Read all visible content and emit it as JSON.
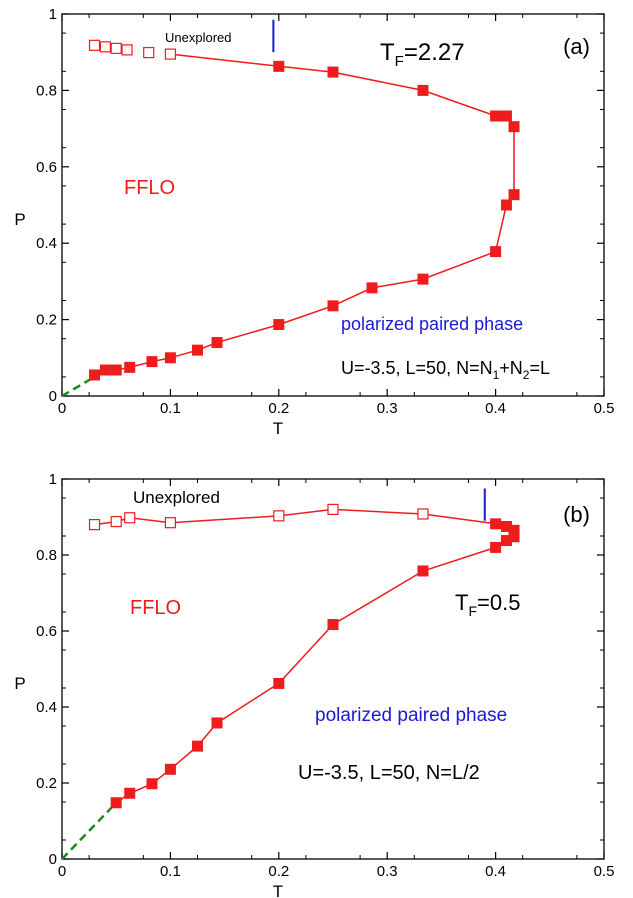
{
  "colors": {
    "curve": "#ee1c1c",
    "pairedLabel": "#1a1ad6",
    "marker": "#1a1ad6",
    "dashed": "#1a8a1a",
    "axis": "#000000"
  },
  "chart_data": [
    {
      "type": "scatter",
      "panel_label": "(a)",
      "xlabel": "T",
      "ylabel": "P",
      "xlim": [
        0,
        0.5
      ],
      "ylim": [
        0,
        1
      ],
      "xticks": [
        "0",
        "0.1",
        "0.2",
        "0.3",
        "0.4",
        "0.5"
      ],
      "yticks": [
        "0",
        "0.2",
        "0.4",
        "0.6",
        "0.8",
        "1"
      ],
      "grid": false,
      "annotations": {
        "tf": "T",
        "tf_sub": "F",
        "tf_value": "=2.27",
        "unexplored": "Unexplored",
        "fflo": "FFLO",
        "paired": "polarized paired phase",
        "params_a": "U=-3.5, L=50, N=N",
        "params_sub1": "1",
        "params_b": "+N",
        "params_sub2": "2",
        "params_c": "=L"
      },
      "boundary_marker": {
        "x": 0.195,
        "y_range": [
          0.9,
          0.985
        ]
      },
      "dashed_line": {
        "x": [
          0,
          0.03
        ],
        "y": [
          0,
          0.05
        ]
      },
      "open_points": {
        "x": [
          0.03,
          0.04,
          0.05,
          0.06,
          0.08,
          0.1
        ],
        "y": [
          0.918,
          0.914,
          0.91,
          0.906,
          0.899,
          0.895
        ]
      },
      "curve": {
        "x": [
          0.1,
          0.2,
          0.25,
          0.333,
          0.4,
          0.41,
          0.417,
          0.417,
          0.41,
          0.4,
          0.333,
          0.286,
          0.25,
          0.2,
          0.143,
          0.125,
          0.1,
          0.083,
          0.0625,
          0.05,
          0.04,
          0.03
        ],
        "y": [
          0.895,
          0.863,
          0.848,
          0.8,
          0.733,
          0.733,
          0.705,
          0.527,
          0.5,
          0.378,
          0.306,
          0.283,
          0.236,
          0.187,
          0.14,
          0.12,
          0.1,
          0.09,
          0.075,
          0.068,
          0.068,
          0.055
        ]
      },
      "filled_points": {
        "x": [
          0.2,
          0.25,
          0.333,
          0.4,
          0.41,
          0.417,
          0.417,
          0.41,
          0.4,
          0.333,
          0.286,
          0.25,
          0.2,
          0.143,
          0.125,
          0.1,
          0.083,
          0.0625,
          0.05,
          0.04,
          0.03
        ],
        "y": [
          0.863,
          0.848,
          0.8,
          0.733,
          0.733,
          0.705,
          0.527,
          0.5,
          0.378,
          0.306,
          0.283,
          0.236,
          0.187,
          0.14,
          0.12,
          0.1,
          0.09,
          0.075,
          0.068,
          0.068,
          0.055
        ]
      }
    },
    {
      "type": "scatter",
      "panel_label": "(b)",
      "xlabel": "T",
      "ylabel": "P",
      "xlim": [
        0,
        0.5
      ],
      "ylim": [
        0,
        1
      ],
      "xticks": [
        "0",
        "0.1",
        "0.2",
        "0.3",
        "0.4",
        "0.5"
      ],
      "yticks": [
        "0",
        "0.2",
        "0.4",
        "0.6",
        "0.8",
        "1"
      ],
      "grid": false,
      "annotations": {
        "tf": "T",
        "tf_sub": "F",
        "tf_value": "=0.5",
        "unexplored": "Unexplored",
        "fflo": "FFLO",
        "paired": "polarized paired phase",
        "params": "U=-3.5, L=50, N=L/2"
      },
      "boundary_marker": {
        "x": 0.39,
        "y_range": [
          0.89,
          0.975
        ]
      },
      "dashed_line": {
        "x": [
          0,
          0.05
        ],
        "y": [
          0,
          0.148
        ]
      },
      "open_points": {
        "x": [
          0.03,
          0.05,
          0.0625,
          0.1,
          0.2,
          0.25,
          0.333
        ],
        "y": [
          0.88,
          0.888,
          0.898,
          0.885,
          0.903,
          0.92,
          0.908
        ]
      },
      "curve": {
        "x": [
          0.03,
          0.05,
          0.0625,
          0.1,
          0.2,
          0.25,
          0.333,
          0.4,
          0.41,
          0.417,
          0.417,
          0.41,
          0.4,
          0.333,
          0.25,
          0.2,
          0.143,
          0.125,
          0.1,
          0.083,
          0.0625,
          0.05
        ],
        "y": [
          0.88,
          0.888,
          0.898,
          0.885,
          0.903,
          0.92,
          0.908,
          0.882,
          0.875,
          0.865,
          0.848,
          0.838,
          0.82,
          0.758,
          0.617,
          0.462,
          0.358,
          0.297,
          0.236,
          0.198,
          0.173,
          0.148
        ]
      },
      "filled_points": {
        "x": [
          0.4,
          0.41,
          0.417,
          0.417,
          0.41,
          0.4,
          0.333,
          0.25,
          0.2,
          0.143,
          0.125,
          0.1,
          0.083,
          0.0625,
          0.05
        ],
        "y": [
          0.882,
          0.875,
          0.865,
          0.848,
          0.838,
          0.82,
          0.758,
          0.617,
          0.462,
          0.358,
          0.297,
          0.236,
          0.198,
          0.173,
          0.148
        ]
      }
    }
  ]
}
